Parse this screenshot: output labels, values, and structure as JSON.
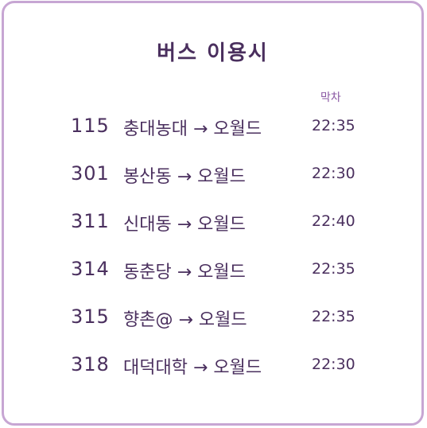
{
  "title": "버스 이용시",
  "last_bus_label": "막차",
  "routes": [
    {
      "number": "115",
      "route": "충대농대 → 오월드",
      "last_time": "22:35"
    },
    {
      "number": "301",
      "route": "봉산동 → 오월드",
      "last_time": "22:30"
    },
    {
      "number": "311",
      "route": "신대동 → 오월드",
      "last_time": "22:40"
    },
    {
      "number": "314",
      "route": "동춘당 → 오월드",
      "last_time": "22:35"
    },
    {
      "number": "315",
      "route": "향촌@ → 오월드",
      "last_time": "22:35"
    },
    {
      "number": "318",
      "route": "대덕대학 → 오월드",
      "last_time": "22:30"
    }
  ],
  "colors": {
    "border": "#c7a6d3",
    "text": "#4a2f5e",
    "accent": "#8a58a3"
  }
}
